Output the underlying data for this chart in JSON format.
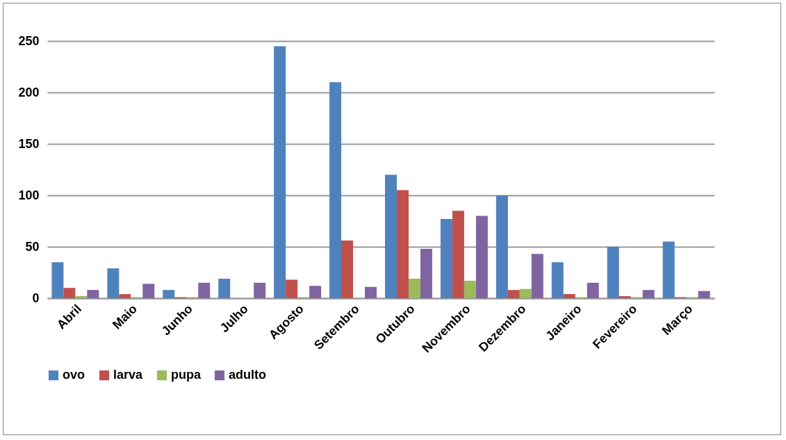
{
  "chart_data": {
    "type": "bar",
    "categories": [
      "Abril",
      "Maio",
      "Junho",
      "Julho",
      "Agosto",
      "Setembro",
      "Outubro",
      "Novembro",
      "Dezembro",
      "Janeiro",
      "Fevereiro",
      "Março"
    ],
    "series": [
      {
        "name": "ovo",
        "color": "#4f81bd",
        "values": [
          35,
          29,
          8,
          19,
          245,
          210,
          120,
          77,
          100,
          35,
          50,
          55
        ]
      },
      {
        "name": "larva",
        "color": "#c0504d",
        "values": [
          10,
          4,
          1,
          0,
          18,
          56,
          105,
          85,
          8,
          4,
          2,
          1
        ]
      },
      {
        "name": "pupa",
        "color": "#9bbb59",
        "values": [
          2,
          1,
          1,
          0,
          1,
          0,
          19,
          17,
          9,
          1,
          1,
          1
        ]
      },
      {
        "name": "adulto",
        "color": "#8064a2",
        "values": [
          8,
          14,
          15,
          15,
          12,
          11,
          48,
          80,
          43,
          15,
          8,
          7
        ]
      }
    ],
    "ylim": [
      0,
      250
    ],
    "yticks": [
      0,
      50,
      100,
      150,
      200,
      250
    ],
    "grid": "y",
    "legend": "bottom"
  }
}
